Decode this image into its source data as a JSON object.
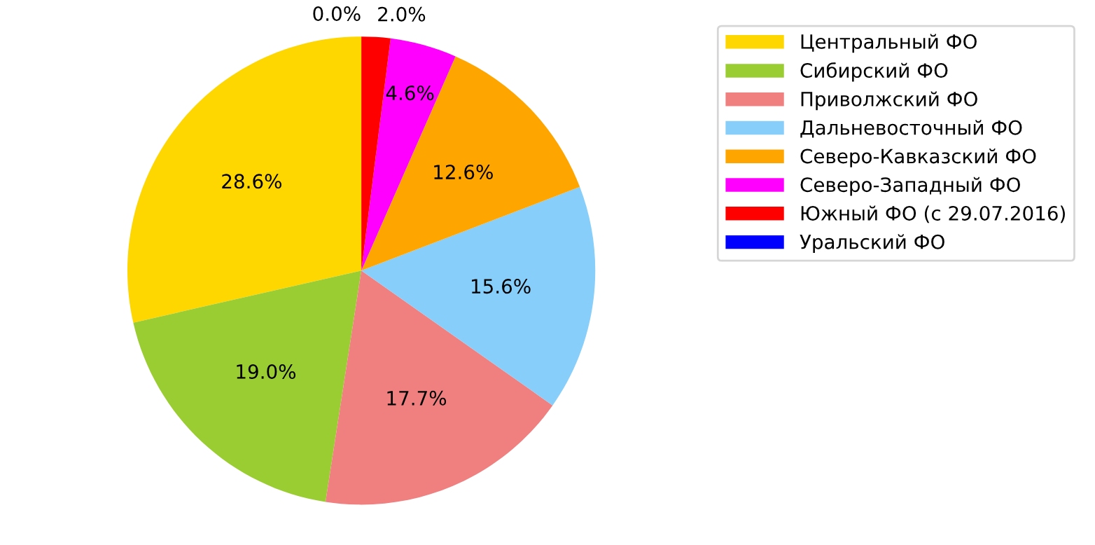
{
  "chart_data": {
    "type": "pie",
    "categories": [
      "Центральный ФО",
      "Сибирский ФО",
      "Приволжский ФО",
      "Дальневосточный ФО",
      "Северо-Кавказский ФО",
      "Северо-Западный ФО",
      "Южный ФО (с 29.07.2016)",
      "Уральский ФО"
    ],
    "values": [
      28.6,
      19.0,
      17.7,
      15.6,
      12.6,
      4.6,
      2.0,
      0.0
    ],
    "colors": [
      "#ffd700",
      "#9acd32",
      "#f08080",
      "#87cefa",
      "#ffa500",
      "#ff00ff",
      "#ff0000",
      "#0000ff"
    ],
    "value_labels": [
      "28.6%",
      "19.0%",
      "17.7%",
      "15.6%",
      "12.6%",
      "4.6%",
      "2.0%",
      "0.0%"
    ],
    "legend": "top right"
  }
}
